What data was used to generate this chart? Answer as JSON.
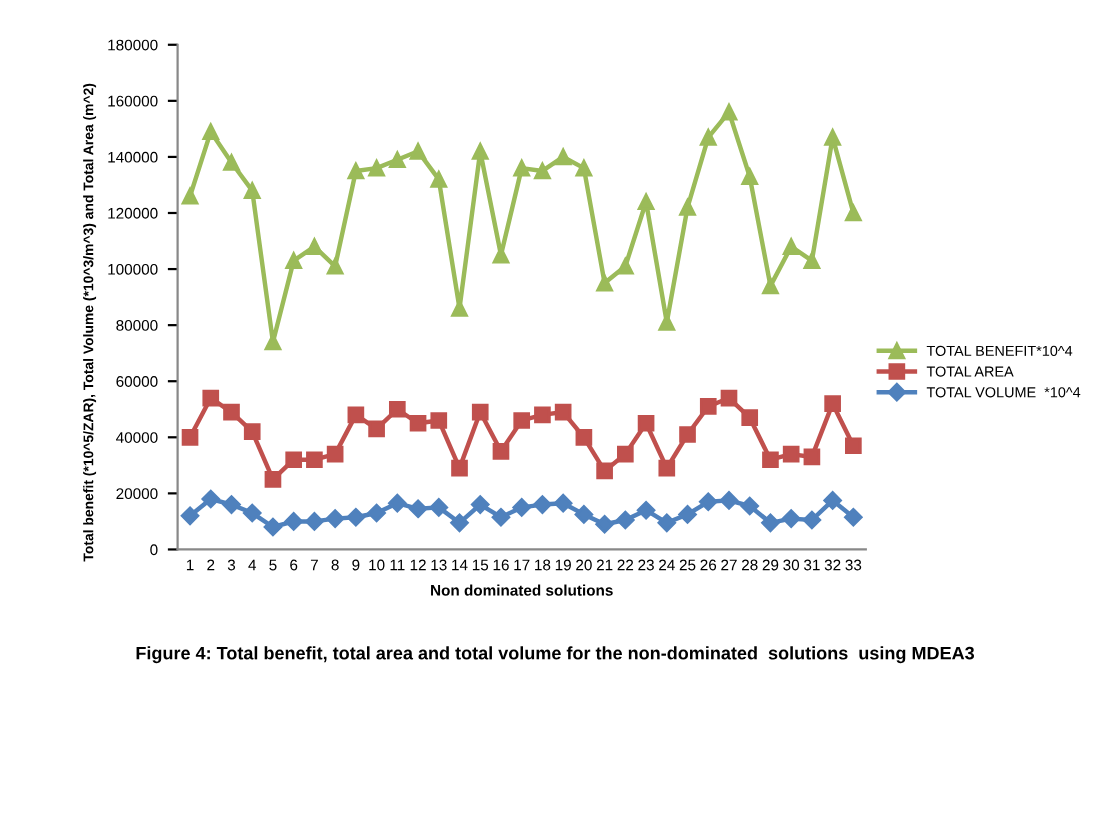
{
  "chart_data": {
    "type": "line",
    "xlabel": "Non dominated solutions",
    "ylabel": "Total benefit (*10^5/ZAR), Total Volume (*10^3/m^3) and Total Area (m^2)",
    "annotations": [
      "Figure 4: Total benefit, total area and total volume for the non-dominated  solutions  using MDEA3"
    ],
    "categories": [
      "1",
      "2",
      "3",
      "4",
      "5",
      "6",
      "7",
      "8",
      "9",
      "10",
      "11",
      "12",
      "13",
      "14",
      "15",
      "16",
      "17",
      "18",
      "19",
      "20",
      "21",
      "22",
      "23",
      "24",
      "25",
      "26",
      "27",
      "28",
      "29",
      "30",
      "31",
      "32",
      "33"
    ],
    "series": [
      {
        "name": "TOTAL BENEFIT*10^4",
        "color": "#9bbb59",
        "marker": "triangle",
        "values": [
          126000,
          149000,
          138000,
          128000,
          74000,
          103000,
          108000,
          101000,
          135000,
          136000,
          139000,
          142000,
          132000,
          86000,
          142000,
          105000,
          136000,
          135000,
          140000,
          136000,
          95000,
          101000,
          124000,
          81000,
          122000,
          147000,
          156000,
          133000,
          94000,
          108000,
          103000,
          147000,
          120000
        ]
      },
      {
        "name": "TOTAL AREA",
        "color": "#c0504d",
        "marker": "square",
        "values": [
          40000,
          54000,
          49000,
          42000,
          25000,
          32000,
          32000,
          34000,
          48000,
          43000,
          50000,
          45000,
          46000,
          29000,
          49000,
          35000,
          46000,
          48000,
          49000,
          40000,
          28000,
          34000,
          45000,
          29000,
          41000,
          51000,
          54000,
          47000,
          32000,
          34000,
          33000,
          52000,
          37000
        ]
      },
      {
        "name": "TOTAL VOLUME  *10^4",
        "color": "#4f81bd",
        "marker": "diamond",
        "values": [
          12000,
          18000,
          16000,
          13000,
          8000,
          10000,
          10000,
          11000,
          11500,
          13000,
          16500,
          14500,
          15000,
          9500,
          16000,
          11500,
          15000,
          16000,
          16500,
          12500,
          9000,
          10500,
          14000,
          9500,
          12500,
          17000,
          17500,
          15500,
          9500,
          11000,
          10500,
          17500,
          11500
        ]
      }
    ],
    "ylim": [
      0,
      180000
    ],
    "yticks": [
      0,
      20000,
      40000,
      60000,
      80000,
      100000,
      120000,
      140000,
      160000,
      180000
    ],
    "grid": false,
    "legend": "right"
  }
}
